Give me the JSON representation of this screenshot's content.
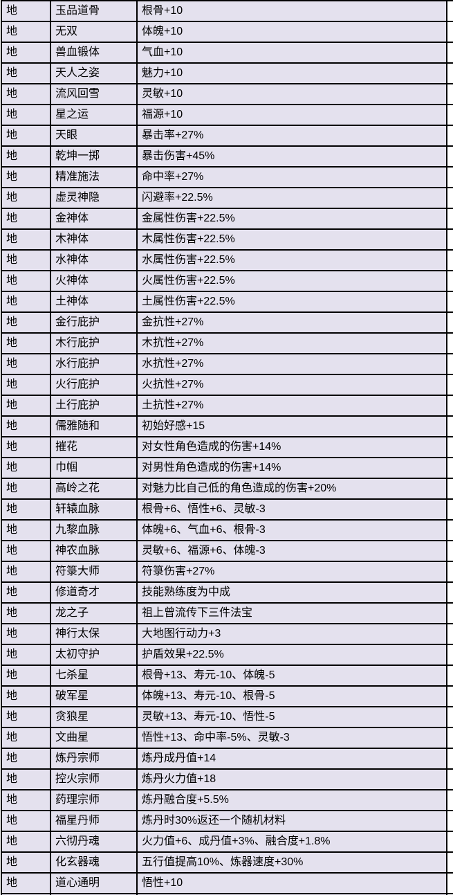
{
  "colors": {
    "grid_line": "#000000",
    "row_background": "#e4e1ee",
    "text": "#000000",
    "page_background": "#ffffff"
  },
  "table": {
    "description": "trait-grade-table",
    "columns": [
      "grade",
      "trait_name",
      "trait_effect"
    ],
    "rows": [
      {
        "grade": "地",
        "name": "玉品道骨",
        "effect": "根骨+10"
      },
      {
        "grade": "地",
        "name": "无双",
        "effect": "体魄+10"
      },
      {
        "grade": "地",
        "name": "兽血锻体",
        "effect": "气血+10"
      },
      {
        "grade": "地",
        "name": "天人之姿",
        "effect": "魅力+10"
      },
      {
        "grade": "地",
        "name": "流风回雪",
        "effect": "灵敏+10"
      },
      {
        "grade": "地",
        "name": "星之运",
        "effect": "福源+10"
      },
      {
        "grade": "地",
        "name": "天眼",
        "effect": "暴击率+27%"
      },
      {
        "grade": "地",
        "name": "乾坤一掷",
        "effect": "暴击伤害+45%"
      },
      {
        "grade": "地",
        "name": "精准施法",
        "effect": "命中率+27%"
      },
      {
        "grade": "地",
        "name": "虚灵神隐",
        "effect": "闪避率+22.5%"
      },
      {
        "grade": "地",
        "name": "金神体",
        "effect": "金属性伤害+22.5%"
      },
      {
        "grade": "地",
        "name": "木神体",
        "effect": "木属性伤害+22.5%"
      },
      {
        "grade": "地",
        "name": "水神体",
        "effect": "水属性伤害+22.5%"
      },
      {
        "grade": "地",
        "name": "火神体",
        "effect": "火属性伤害+22.5%"
      },
      {
        "grade": "地",
        "name": "土神体",
        "effect": "土属性伤害+22.5%"
      },
      {
        "grade": "地",
        "name": "金行庇护",
        "effect": "金抗性+27%"
      },
      {
        "grade": "地",
        "name": "木行庇护",
        "effect": "木抗性+27%"
      },
      {
        "grade": "地",
        "name": "水行庇护",
        "effect": "水抗性+27%"
      },
      {
        "grade": "地",
        "name": "火行庇护",
        "effect": "火抗性+27%"
      },
      {
        "grade": "地",
        "name": "土行庇护",
        "effect": "土抗性+27%"
      },
      {
        "grade": "地",
        "name": "儒雅随和",
        "effect": "初始好感+15"
      },
      {
        "grade": "地",
        "name": "摧花",
        "effect": "对女性角色造成的伤害+14%"
      },
      {
        "grade": "地",
        "name": "巾帼",
        "effect": "对男性角色造成的伤害+14%"
      },
      {
        "grade": "地",
        "name": "高岭之花",
        "effect": "对魅力比自己低的角色造成的伤害+20%"
      },
      {
        "grade": "地",
        "name": "轩辕血脉",
        "effect": "根骨+6、悟性+6、灵敏-3"
      },
      {
        "grade": "地",
        "name": "九黎血脉",
        "effect": "体魄+6、气血+6、根骨-3"
      },
      {
        "grade": "地",
        "name": "神农血脉",
        "effect": "灵敏+6、福源+6、体魄-3"
      },
      {
        "grade": "地",
        "name": "符箓大师",
        "effect": "符箓伤害+27%"
      },
      {
        "grade": "地",
        "name": "修道奇才",
        "effect": "技能熟练度为中成"
      },
      {
        "grade": "地",
        "name": "龙之子",
        "effect": "祖上曾流传下三件法宝"
      },
      {
        "grade": "地",
        "name": "神行太保",
        "effect": "大地图行动力+3"
      },
      {
        "grade": "地",
        "name": "太初守护",
        "effect": "护盾效果+22.5%"
      },
      {
        "grade": "地",
        "name": "七杀星",
        "effect": "根骨+13、寿元-10、体魄-5"
      },
      {
        "grade": "地",
        "name": "破军星",
        "effect": "体魄+13、寿元-10、根骨-5"
      },
      {
        "grade": "地",
        "name": "贪狼星",
        "effect": "灵敏+13、寿元-10、悟性-5"
      },
      {
        "grade": "地",
        "name": "文曲星",
        "effect": "悟性+13、命中率-5%、灵敏-3"
      },
      {
        "grade": "地",
        "name": "炼丹宗师",
        "effect": "炼丹成丹值+14"
      },
      {
        "grade": "地",
        "name": "控火宗师",
        "effect": "炼丹火力值+18"
      },
      {
        "grade": "地",
        "name": "药理宗师",
        "effect": "炼丹融合度+5.5%"
      },
      {
        "grade": "地",
        "name": "福星丹师",
        "effect": "炼丹时30%返还一个随机材料"
      },
      {
        "grade": "地",
        "name": "六彻丹魂",
        "effect": "火力值+6、成丹值+3%、融合度+1.8%"
      },
      {
        "grade": "地",
        "name": "化玄器魂",
        "effect": "五行值提高10%、炼器速度+30%"
      },
      {
        "grade": "地",
        "name": "道心通明",
        "effect": "悟性+10"
      }
    ],
    "partial_next_row_visible": true
  }
}
